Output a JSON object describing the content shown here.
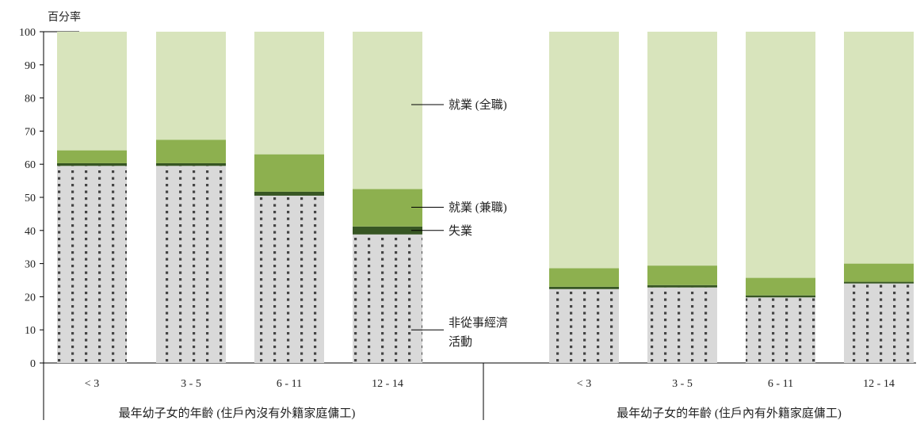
{
  "chart_data": {
    "type": "bar",
    "stacked": true,
    "ylabel": "百分率",
    "ylim": [
      0,
      100
    ],
    "yticks": [
      0,
      10,
      20,
      30,
      40,
      50,
      60,
      70,
      80,
      90,
      100
    ],
    "grid": false,
    "groups": [
      {
        "label": "最年幼子女的年齡 (住戶內沒有外籍家庭傭工)",
        "categories": [
          "< 3",
          "3 - 5",
          "6 - 11",
          "12 - 14"
        ]
      },
      {
        "label": "最年幼子女的年齡 (住戶內有外籍家庭傭工)",
        "categories": [
          "< 3",
          "3 - 5",
          "6 - 11",
          "12 - 14"
        ]
      }
    ],
    "series": [
      {
        "name": "非從事經濟活動",
        "color": "#d9d9d9",
        "pattern": "dots",
        "values": [
          59.5,
          59.5,
          50.5,
          38.8,
          22.3,
          22.8,
          19.8,
          24.0
        ]
      },
      {
        "name": "失業",
        "color": "#375623",
        "values": [
          0.8,
          0.8,
          1.2,
          2.4,
          0.7,
          0.7,
          0.6,
          0.5
        ]
      },
      {
        "name": "就業 (兼職)",
        "color": "#8db04f",
        "values": [
          3.9,
          7.1,
          11.3,
          11.3,
          5.6,
          5.9,
          5.3,
          5.5
        ]
      },
      {
        "name": "就業 (全職)",
        "color": "#d8e4bc",
        "values": [
          35.8,
          32.6,
          37.0,
          47.5,
          71.4,
          70.6,
          74.3,
          70.0
        ]
      }
    ],
    "annotations": [
      {
        "series": "就業 (全職)",
        "lines": [
          "就業 (全職)"
        ]
      },
      {
        "series": "就業 (兼職)",
        "lines": [
          "就業 (兼職)"
        ]
      },
      {
        "series": "失業",
        "lines": [
          "失業"
        ]
      },
      {
        "series": "非從事經濟活動",
        "lines": [
          "非從事經濟",
          "活動"
        ]
      }
    ]
  }
}
